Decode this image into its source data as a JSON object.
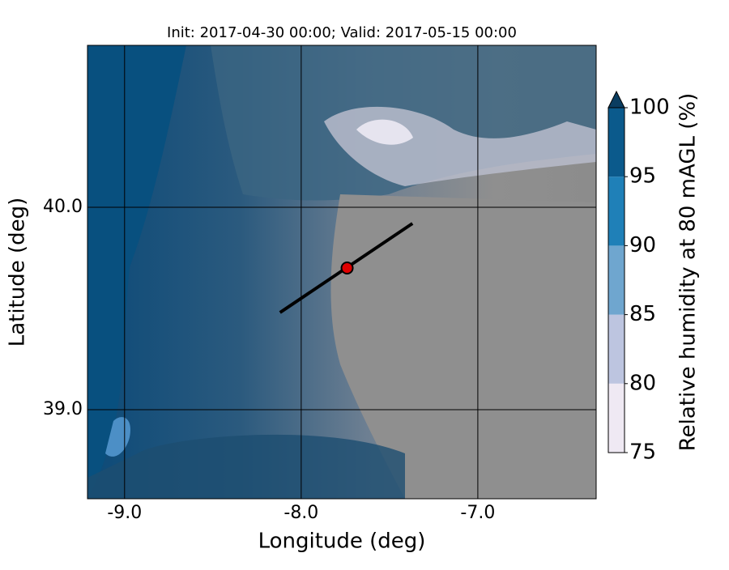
{
  "chart_data": {
    "type": "map",
    "title": "Init: 2017-04-30 00:00; Valid: 2017-05-15 00:00",
    "x_label": "Longitude (deg)",
    "y_label": "Latitude (deg)",
    "xlim": [
      -9.21,
      -6.33
    ],
    "ylim": [
      38.56,
      40.8
    ],
    "xticks": [
      {
        "value": -9,
        "label": "-9.0"
      },
      {
        "value": -8,
        "label": "-8.0"
      },
      {
        "value": -7,
        "label": "-7.0"
      }
    ],
    "yticks": [
      {
        "value": 39,
        "label": "39.0"
      },
      {
        "value": 40,
        "label": "40.0"
      }
    ],
    "grid": true,
    "transect": {
      "lon": [
        -8.12,
        -7.37
      ],
      "lat": [
        39.48,
        39.92
      ],
      "color": "#000000"
    },
    "marker": {
      "lon": -7.74,
      "lat": 39.7,
      "color": "#e00000"
    },
    "colorbar": {
      "label": "Relative humidity at 80 mAGL (%)",
      "levels": [
        75,
        80,
        85,
        90,
        95,
        100
      ],
      "colors": [
        "#efe9f3",
        "#bdc5e0",
        "#6fa6cf",
        "#1f80b8",
        "#0b5a8c"
      ],
      "extend_color": "#0a3d60"
    }
  }
}
